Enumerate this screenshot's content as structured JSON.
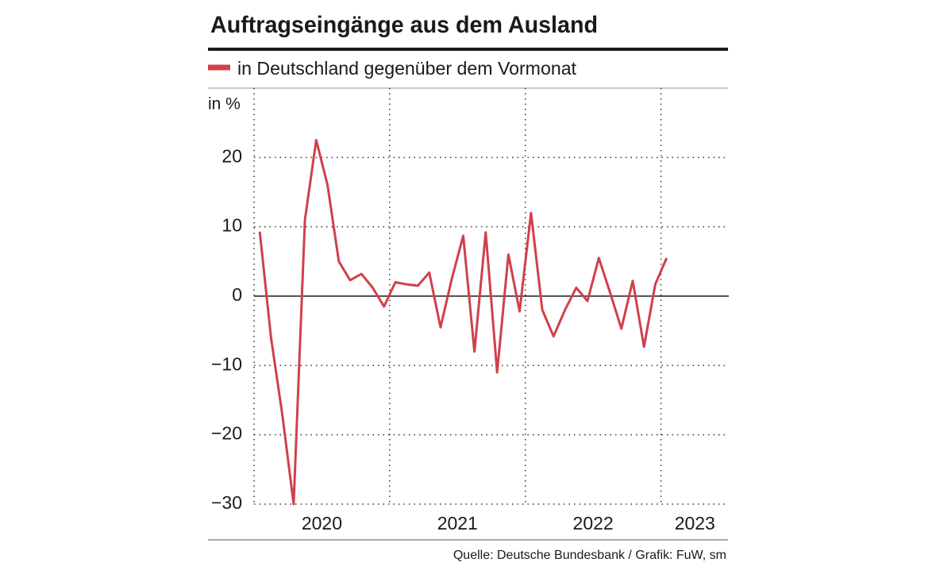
{
  "chart_data": {
    "type": "line",
    "title": "Auftragseingänge aus dem Ausland",
    "y_label": "in %",
    "source": "Quelle: Deutsche Bundesbank / Grafik: FuW, sm",
    "x": [
      2020.042,
      2020.125,
      2020.208,
      2020.292,
      2020.375,
      2020.458,
      2020.542,
      2020.625,
      2020.708,
      2020.792,
      2020.875,
      2020.958,
      2021.042,
      2021.125,
      2021.208,
      2021.292,
      2021.375,
      2021.458,
      2021.542,
      2021.625,
      2021.708,
      2021.792,
      2021.875,
      2021.958,
      2022.042,
      2022.125,
      2022.208,
      2022.292,
      2022.375,
      2022.458,
      2022.542,
      2022.625,
      2022.708,
      2022.792,
      2022.875,
      2022.958,
      2023.042
    ],
    "series": [
      {
        "name": "in Deutschland gegenüber dem Vormonat",
        "color": "#d0404a",
        "values": [
          9.3,
          -6,
          -17,
          -30,
          11,
          22.5,
          16,
          5,
          2.3,
          3.2,
          1.2,
          -1.5,
          2,
          1.7,
          1.5,
          3.4,
          -4.5,
          2.5,
          8.7,
          -8,
          9.2,
          -11,
          6,
          -2.2,
          12,
          -2,
          -5.8,
          -2,
          1.2,
          -0.7,
          5.5,
          0.5,
          -4.7,
          2.2,
          -7.3,
          1.7,
          5.5
        ]
      }
    ],
    "xlim": [
      2020,
      2023.5
    ],
    "xticks": [
      2020,
      2021,
      2022,
      2023
    ],
    "ylim": [
      -30,
      30
    ],
    "yticks": [
      {
        "value": -30,
        "label": "−30"
      },
      {
        "value": -20,
        "label": "−20"
      },
      {
        "value": -10,
        "label": "−10"
      },
      0,
      10,
      20
    ],
    "grid": true
  }
}
